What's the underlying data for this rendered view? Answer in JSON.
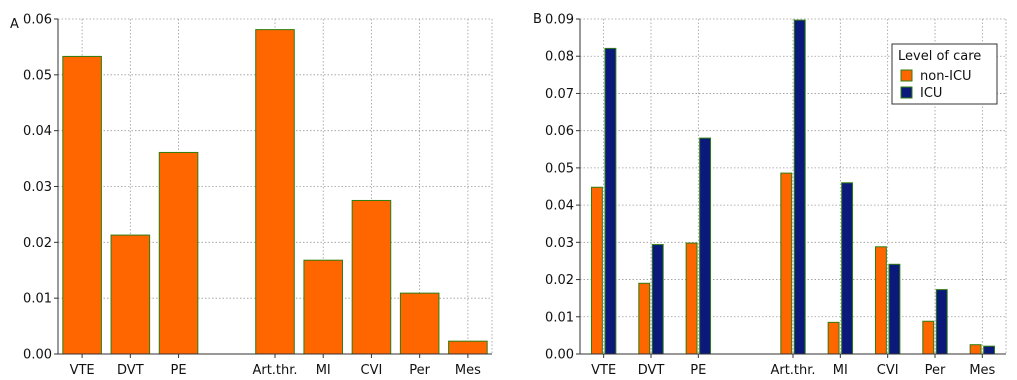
{
  "chart_data": [
    {
      "panel_label": "A",
      "type": "bar",
      "categories": [
        "VTE",
        "DVT",
        "PE",
        "",
        "Art.thr.",
        "MI",
        "CVI",
        "Per",
        "Mes"
      ],
      "series": [
        {
          "values": [
            0.0533,
            0.0213,
            0.0361,
            null,
            0.0581,
            0.0168,
            0.0275,
            0.0109,
            0.0023
          ]
        }
      ],
      "ylim": [
        0,
        0.06
      ],
      "yticks": [
        "0.00",
        "0.01",
        "0.02",
        "0.03",
        "0.04",
        "0.05",
        "0.06"
      ],
      "grid": true,
      "colors": {
        "bar": "#ff6600",
        "bar_edge": "#2e7d12"
      }
    },
    {
      "panel_label": "B",
      "type": "bar",
      "categories": [
        "VTE",
        "DVT",
        "PE",
        "",
        "Art.thr.",
        "MI",
        "CVI",
        "Per",
        "Mes"
      ],
      "series": [
        {
          "name": "non-ICU",
          "color": "#ff6600",
          "values": [
            0.0448,
            0.019,
            0.0298,
            null,
            0.0486,
            0.0085,
            0.0288,
            0.0088,
            0.0025
          ]
        },
        {
          "name": "ICU",
          "color": "#0b1a7a",
          "values": [
            0.0821,
            0.0294,
            0.058,
            null,
            0.0897,
            0.046,
            0.0241,
            0.0173,
            0.0021
          ]
        }
      ],
      "ylim": [
        0,
        0.09
      ],
      "yticks": [
        "0.00",
        "0.01",
        "0.02",
        "0.03",
        "0.04",
        "0.05",
        "0.06",
        "0.07",
        "0.08",
        "0.09"
      ],
      "grid": true,
      "legend": {
        "title": "Level of care",
        "placement": "top-right"
      },
      "colors": {
        "bar_edge": "#2e7d12"
      }
    }
  ]
}
